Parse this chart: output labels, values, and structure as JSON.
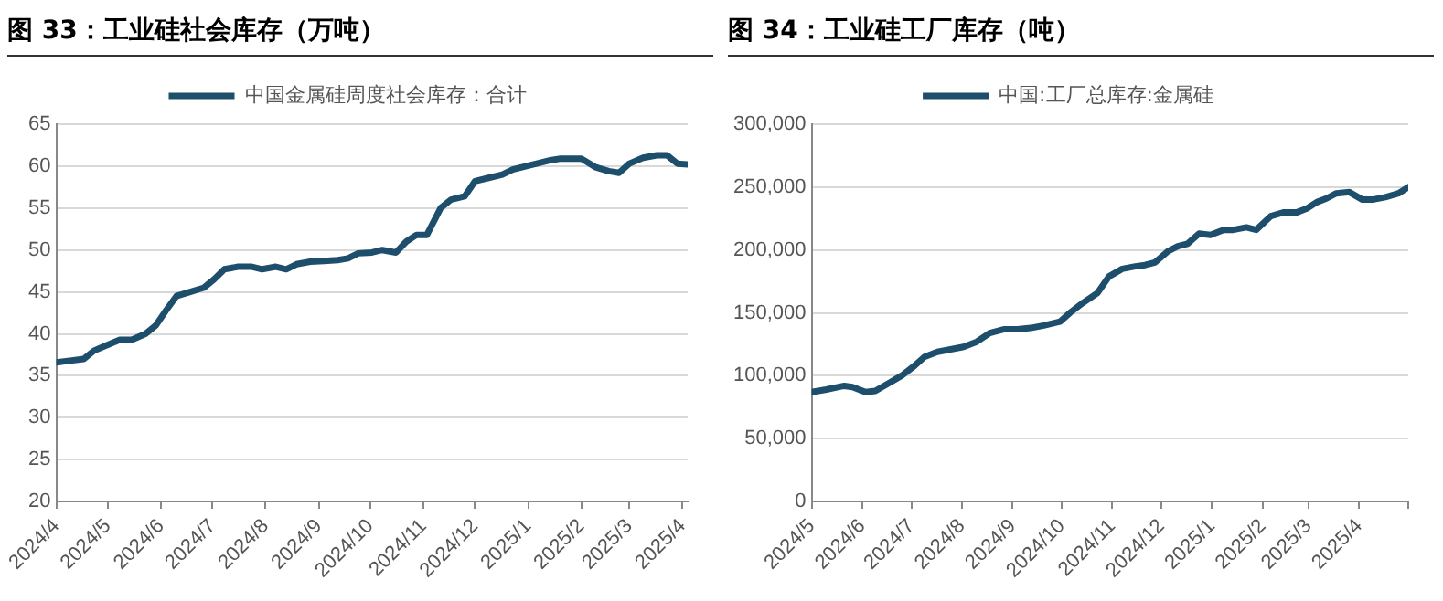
{
  "chart_data": [
    {
      "type": "line",
      "title": "图 33：工业硅社会库存（万吨）",
      "legend": "top",
      "grid": "y",
      "marker": "none",
      "line_style": "solid",
      "xlim": [
        "2024-04-01",
        "2025-04-04"
      ],
      "xticks": [
        {
          "value": "2024-04",
          "label": "2024/4"
        },
        {
          "value": "2024-05",
          "label": "2024/5"
        },
        {
          "value": "2024-06",
          "label": "2024/6"
        },
        {
          "value": "2024-07",
          "label": "2024/7"
        },
        {
          "value": "2024-08",
          "label": "2024/8"
        },
        {
          "value": "2024-09",
          "label": "2024/9"
        },
        {
          "value": "2024-10",
          "label": "2024/10"
        },
        {
          "value": "2024-11",
          "label": "2024/11"
        },
        {
          "value": "2024-12",
          "label": "2024/12"
        },
        {
          "value": "2025-01",
          "label": "2025/1"
        },
        {
          "value": "2025-02",
          "label": "2025/2"
        },
        {
          "value": "2025-03",
          "label": "2025/3"
        },
        {
          "value": "2025-04",
          "label": "2025/4"
        }
      ],
      "ylim": [
        20,
        65
      ],
      "yticks": [
        20,
        25,
        30,
        35,
        40,
        45,
        50,
        55,
        60,
        65
      ],
      "x": [
        "2024-04-01",
        "2024-04-09",
        "2024-04-17",
        "2024-04-23",
        "2024-05-01",
        "2024-05-08",
        "2024-05-15",
        "2024-05-23",
        "2024-05-29",
        "2024-06-04",
        "2024-06-10",
        "2024-06-18",
        "2024-06-26",
        "2024-07-02",
        "2024-07-08",
        "2024-07-16",
        "2024-07-24",
        "2024-07-30",
        "2024-08-07",
        "2024-08-13",
        "2024-08-19",
        "2024-08-27",
        "2024-09-04",
        "2024-09-12",
        "2024-09-18",
        "2024-09-24",
        "2024-10-02",
        "2024-10-08",
        "2024-10-16",
        "2024-10-22",
        "2024-10-28",
        "2024-11-03",
        "2024-11-11",
        "2024-11-17",
        "2024-11-25",
        "2024-12-01",
        "2024-12-09",
        "2024-12-17",
        "2024-12-23",
        "2024-12-31",
        "2025-01-06",
        "2025-01-14",
        "2025-01-20",
        "2025-01-26",
        "2025-02-01",
        "2025-02-09",
        "2025-02-17",
        "2025-02-23",
        "2025-03-01",
        "2025-03-09",
        "2025-03-17",
        "2025-03-23",
        "2025-03-29",
        "2025-04-04"
      ],
      "series": [
        {
          "name": "中国金属硅周度社会库存：合计",
          "color": "#1d4e6b",
          "values": [
            36.6,
            36.8,
            37.0,
            38.0,
            38.7,
            39.3,
            39.3,
            40.0,
            41.0,
            42.8,
            44.5,
            45.0,
            45.5,
            46.5,
            47.7,
            48.0,
            48.0,
            47.7,
            48.0,
            47.7,
            48.3,
            48.6,
            48.7,
            48.8,
            49.0,
            49.6,
            49.7,
            50.0,
            49.7,
            51.0,
            51.8,
            51.8,
            55.0,
            56.0,
            56.4,
            58.2,
            58.6,
            59.0,
            59.6,
            60.0,
            60.3,
            60.7,
            60.9,
            60.9,
            60.9,
            59.9,
            59.4,
            59.2,
            60.3,
            61.0,
            61.3,
            61.3,
            60.3,
            60.2
          ]
        }
      ]
    },
    {
      "type": "line",
      "title": "图 34：工业硅工厂库存（吨）",
      "legend": "top",
      "grid": "y",
      "marker": "none",
      "line_style": "solid",
      "xlim": [
        "2024-05-01",
        "2025-05-01"
      ],
      "xticks": [
        {
          "value": "2024-05",
          "label": "2024/5"
        },
        {
          "value": "2024-06",
          "label": "2024/6"
        },
        {
          "value": "2024-07",
          "label": "2024/7"
        },
        {
          "value": "2024-08",
          "label": "2024/8"
        },
        {
          "value": "2024-09",
          "label": "2024/9"
        },
        {
          "value": "2024-10",
          "label": "2024/10"
        },
        {
          "value": "2024-11",
          "label": "2024/11"
        },
        {
          "value": "2024-12",
          "label": "2024/12"
        },
        {
          "value": "2025-01",
          "label": "2025/1"
        },
        {
          "value": "2025-02",
          "label": "2025/2"
        },
        {
          "value": "2025-03",
          "label": "2025/3"
        },
        {
          "value": "2025-04",
          "label": "2025/4"
        },
        {
          "value": "2025-05",
          "label": null
        }
      ],
      "ylim": [
        0,
        300000
      ],
      "yticks": [
        0,
        {
          "value": 50000,
          "label": "50,000"
        },
        {
          "value": 100000,
          "label": "100,000"
        },
        {
          "value": 150000,
          "label": "150,000"
        },
        {
          "value": 200000,
          "label": "200,000"
        },
        {
          "value": 250000,
          "label": "250,000"
        },
        {
          "value": 300000,
          "label": "300,000"
        }
      ],
      "x": [
        "2024-05-01",
        "2024-05-10",
        "2024-05-21",
        "2024-05-26",
        "2024-06-03",
        "2024-06-09",
        "2024-06-17",
        "2024-06-25",
        "2024-07-03",
        "2024-07-09",
        "2024-07-17",
        "2024-07-25",
        "2024-08-02",
        "2024-08-10",
        "2024-08-18",
        "2024-08-27",
        "2024-09-04",
        "2024-09-12",
        "2024-09-20",
        "2024-09-30",
        "2024-10-06",
        "2024-10-14",
        "2024-10-23",
        "2024-10-30",
        "2024-11-07",
        "2024-11-15",
        "2024-11-21",
        "2024-11-27",
        "2024-12-05",
        "2024-12-11",
        "2024-12-17",
        "2024-12-24",
        "2024-12-31",
        "2025-01-08",
        "2025-01-14",
        "2025-01-22",
        "2025-01-28",
        "2025-02-06",
        "2025-02-14",
        "2025-02-22",
        "2025-02-28",
        "2025-03-06",
        "2025-03-12",
        "2025-03-18",
        "2025-03-26",
        "2025-04-03",
        "2025-04-09",
        "2025-04-17",
        "2025-04-25",
        "2025-05-01"
      ],
      "series": [
        {
          "name": "中国:工厂总库存:金属硅",
          "color": "#1d4e6b",
          "values": [
            87000,
            89000,
            92000,
            91000,
            87000,
            88000,
            94000,
            100000,
            108000,
            115000,
            119000,
            121000,
            123000,
            127000,
            134000,
            137000,
            137000,
            138000,
            140000,
            143000,
            150000,
            158000,
            166000,
            179000,
            185000,
            187000,
            188000,
            190000,
            199000,
            203000,
            205000,
            213000,
            212000,
            216000,
            216000,
            218000,
            216000,
            227000,
            230000,
            230000,
            233000,
            238000,
            241000,
            245000,
            246000,
            240000,
            240000,
            242000,
            245000,
            250000
          ]
        }
      ]
    }
  ]
}
